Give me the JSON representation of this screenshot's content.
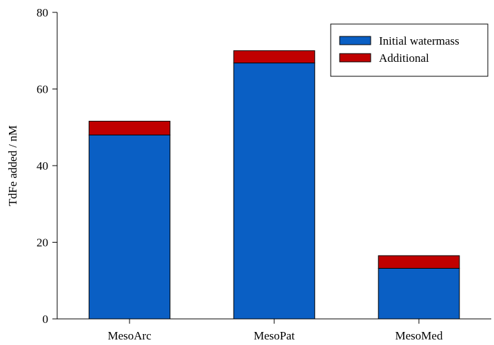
{
  "chart_data": {
    "type": "bar",
    "stacked": true,
    "categories": [
      "MesoArc",
      "MesoPat",
      "MesoMed"
    ],
    "series": [
      {
        "name": "Initial watermass",
        "color": "#0a5fc4",
        "values": [
          48,
          66.8,
          13.2
        ]
      },
      {
        "name": "Additional",
        "color": "#c00000",
        "values": [
          3.6,
          3.2,
          3.3
        ]
      }
    ],
    "xlabel": "",
    "ylabel": "TdFe added / nM",
    "ylim": [
      0,
      80
    ],
    "yticks": [
      0,
      20,
      40,
      60,
      80
    ],
    "grid": false,
    "legend_position": "top-right"
  }
}
